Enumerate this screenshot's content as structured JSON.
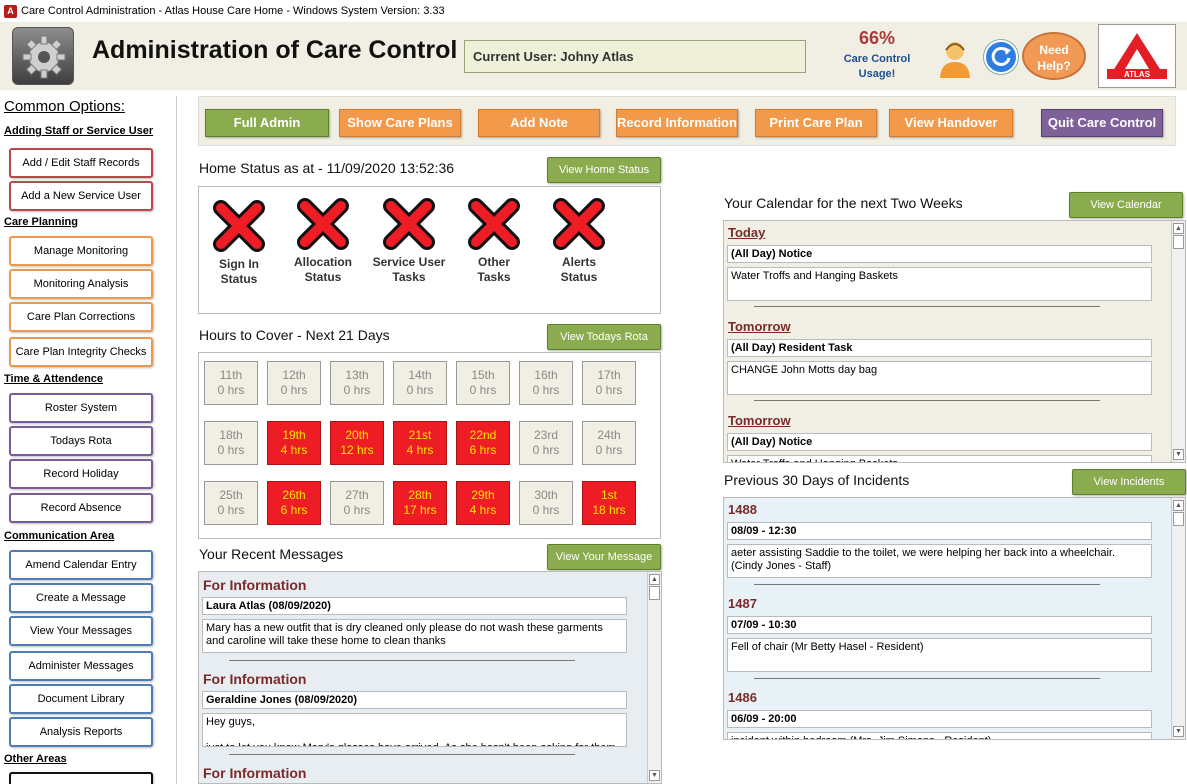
{
  "window": {
    "title": "Care Control Administration - Atlas House Care Home - Windows System Version: 3.33"
  },
  "header": {
    "title": "Administration of Care Control",
    "current_user": "Current User: Johny Atlas",
    "usage_percent": "66%",
    "usage_label_1": "Care Control",
    "usage_label_2": "Usage!",
    "help_line1": "Need",
    "help_line2": "Help?",
    "logo_text": "ATLAS"
  },
  "sidebar": {
    "title": "Common Options:",
    "sections": [
      {
        "title": "Adding Staff or Service User",
        "items": [
          "Add / Edit Staff Records",
          "Add a New Service User"
        ]
      },
      {
        "title": "Care Planning",
        "items": [
          "Manage Monitoring",
          "Monitoring Analysis",
          "Care Plan Corrections",
          "Care Plan Integrity Checks"
        ]
      },
      {
        "title": "Time & Attendence",
        "items": [
          "Roster System",
          "Todays Rota",
          "Record Holiday",
          "Record Absence"
        ]
      },
      {
        "title": "Communication Area",
        "items": [
          "Amend Calendar Entry",
          "Create a Message",
          "View Your Messages",
          "Administer Messages",
          "Document Library",
          "Analysis Reports"
        ]
      },
      {
        "title": "Other Areas",
        "items": [
          ""
        ]
      }
    ]
  },
  "toolbar": {
    "buttons": [
      "Full Admin",
      "Show Care Plans",
      "Add Note",
      "Record Information",
      "Print Care Plan",
      "View Handover",
      "Quit Care Control"
    ]
  },
  "home_status": {
    "title": "Home Status as at - 11/09/2020 13:52:36",
    "button": "View Home Status",
    "items": [
      {
        "l1": "Sign In",
        "l2": "Status"
      },
      {
        "l1": "Allocation",
        "l2": "Status"
      },
      {
        "l1": "Service User",
        "l2": "Tasks"
      },
      {
        "l1": "Other",
        "l2": "Tasks"
      },
      {
        "l1": "Alerts",
        "l2": "Status"
      }
    ]
  },
  "hours": {
    "title": "Hours to Cover - Next 21 Days",
    "button": "View Todays Rota",
    "days": [
      {
        "day": "11th",
        "hrs": "0 hrs",
        "alert": false
      },
      {
        "day": "12th",
        "hrs": "0 hrs",
        "alert": false
      },
      {
        "day": "13th",
        "hrs": "0 hrs",
        "alert": false
      },
      {
        "day": "14th",
        "hrs": "0 hrs",
        "alert": false
      },
      {
        "day": "15th",
        "hrs": "0 hrs",
        "alert": false
      },
      {
        "day": "16th",
        "hrs": "0 hrs",
        "alert": false
      },
      {
        "day": "17th",
        "hrs": "0 hrs",
        "alert": false
      },
      {
        "day": "18th",
        "hrs": "0 hrs",
        "alert": false
      },
      {
        "day": "19th",
        "hrs": "4 hrs",
        "alert": true
      },
      {
        "day": "20th",
        "hrs": "12 hrs",
        "alert": true
      },
      {
        "day": "21st",
        "hrs": "4 hrs",
        "alert": true
      },
      {
        "day": "22nd",
        "hrs": "6 hrs",
        "alert": true
      },
      {
        "day": "23rd",
        "hrs": "0 hrs",
        "alert": false
      },
      {
        "day": "24th",
        "hrs": "0 hrs",
        "alert": false
      },
      {
        "day": "25th",
        "hrs": "0 hrs",
        "alert": false
      },
      {
        "day": "26th",
        "hrs": "6 hrs",
        "alert": true
      },
      {
        "day": "27th",
        "hrs": "0 hrs",
        "alert": false
      },
      {
        "day": "28th",
        "hrs": "17 hrs",
        "alert": true
      },
      {
        "day": "29th",
        "hrs": "4 hrs",
        "alert": true
      },
      {
        "day": "30th",
        "hrs": "0 hrs",
        "alert": false
      },
      {
        "day": "1st",
        "hrs": "18 hrs",
        "alert": true
      }
    ]
  },
  "messages": {
    "title": "Your Recent Messages",
    "button": "View Your Message",
    "entries": [
      {
        "type": "For Information",
        "from": "Laura Atlas (08/09/2020)",
        "text": "Mary has a new outfit that is dry cleaned only please do not wash these garments and caroline will take these home to clean thanks"
      },
      {
        "type": "For Information",
        "from": "Geraldine Jones (08/09/2020)",
        "text": "Hey guys,\n\njust to let you know Mary's glasses have arrived. As she hasn't been asking for them"
      },
      {
        "type": "For Information",
        "from": "",
        "text": ""
      }
    ]
  },
  "calendar": {
    "title": "Your Calendar for the next Two Weeks",
    "button": "View Calendar",
    "entries": [
      {
        "day": "Today",
        "kind": "(All Day) Notice",
        "text": "Water Troffs and Hanging Baskets"
      },
      {
        "day": "Tomorrow",
        "kind": "(All Day) Resident Task",
        "text": "CHANGE John Motts day bag"
      },
      {
        "day": "Tomorrow",
        "kind": "(All Day) Notice",
        "text": "Water Troffs and Hanging Baskets"
      }
    ]
  },
  "incidents": {
    "title": "Previous 30 Days of Incidents",
    "button": "View Incidents",
    "entries": [
      {
        "id": "1488",
        "when": "08/09 - 12:30",
        "text": "aeter assisting Saddie to the toilet, we were helping her back into a wheelchair. (Cindy Jones - Staff)"
      },
      {
        "id": "1487",
        "when": "07/09 - 10:30",
        "text": "Fell of chair (Mr Betty Hasel - Resident)"
      },
      {
        "id": "1486",
        "when": "06/09 - 20:00",
        "text": "incident within bedroom (Mrs. Jim Simons - Resident)"
      }
    ]
  }
}
